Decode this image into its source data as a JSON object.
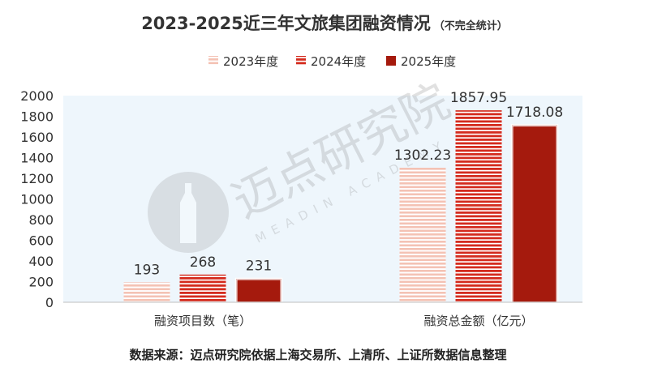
{
  "chart_data": {
    "type": "bar",
    "title": "2023-2025近三年文旅集团融资情况",
    "subtitle": "（不完全统计）",
    "categories": [
      "融资项目数（笔）",
      "融资总金额（亿元）"
    ],
    "series": [
      {
        "name": "2023年度",
        "values": [
          193,
          1302.23
        ],
        "value_labels": [
          "193",
          "1302.23"
        ],
        "color": "#f4c2b4",
        "pattern": "horizontal-stripes"
      },
      {
        "name": "2024年度",
        "values": [
          268,
          1857.95
        ],
        "value_labels": [
          "268",
          "1857.95"
        ],
        "color": "#d42b1e",
        "pattern": "horizontal-stripes"
      },
      {
        "name": "2025年度",
        "values": [
          231,
          1718.08
        ],
        "value_labels": [
          "231",
          "1718.08"
        ],
        "color": "#a51a0d",
        "pattern": "solid"
      }
    ],
    "yticks": [
      "0",
      "200",
      "400",
      "600",
      "800",
      "1000",
      "1200",
      "1400",
      "1600",
      "1800",
      "2000"
    ],
    "ylim": [
      0,
      2000
    ],
    "grid": false,
    "legend_position": "top"
  },
  "source_note": "数据来源：迈点研究院依据上海交易所、上清所、上证所数据信息整理",
  "watermark": {
    "text": "迈点研究院",
    "subtext": "MEADIN ACADEMY"
  }
}
